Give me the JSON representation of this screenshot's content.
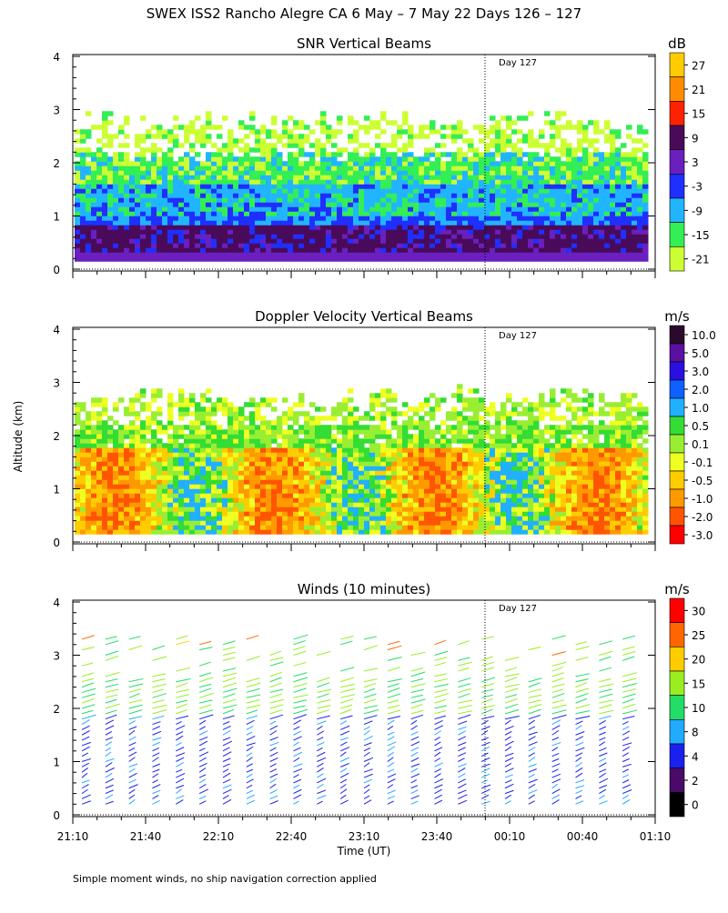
{
  "title": "SWEX ISS2 Rancho Alegre CA   6 May –  7 May 22 Days 126 – 127",
  "footer": "Simple moment winds, no ship navigation correction applied",
  "day_marker": "Day 127",
  "chart_data": [
    {
      "type": "heatmap",
      "title": "SNR Vertical Beams",
      "ylabel": "",
      "ylim": [
        0,
        4
      ],
      "yticks": [
        "0",
        "1",
        "2",
        "3",
        "4"
      ],
      "xlim": [
        "21:10",
        "01:10"
      ],
      "grid": false,
      "colorbar": {
        "unit": "dB",
        "labels": [
          "27",
          "21",
          "15",
          "9",
          "3",
          "-3",
          "-9",
          "-15",
          "-21"
        ],
        "colors": [
          "#ffcc00",
          "#ff8c00",
          "#ff2200",
          "#4a0a5a",
          "#6a1fbf",
          "#1f2fff",
          "#22b5ff",
          "#33ee55",
          "#ccff33"
        ]
      },
      "layers": [
        {
          "from": 0.1,
          "to": 0.7,
          "level": "3"
        },
        {
          "from": 0.7,
          "to": 1.0,
          "level": "-3"
        },
        {
          "from": 1.0,
          "to": 1.6,
          "level": "-9"
        },
        {
          "from": 1.6,
          "to": 2.2,
          "level": "-15"
        },
        {
          "from": 2.2,
          "to": 2.85,
          "level": "-21"
        }
      ]
    },
    {
      "type": "heatmap",
      "title": "Doppler Velocity Vertical Beams",
      "ylabel": "Altitude (km)",
      "ylim": [
        0,
        4
      ],
      "yticks": [
        "0",
        "1",
        "2",
        "3",
        "4"
      ],
      "xlim": [
        "21:10",
        "01:10"
      ],
      "grid": false,
      "colorbar": {
        "unit": "m/s",
        "labels": [
          "10.0",
          "5.0",
          "3.0",
          "2.0",
          "1.0",
          "0.5",
          "0.1",
          "-0.1",
          "-0.5",
          "-1.0",
          "-2.0",
          "-3.0"
        ],
        "colors": [
          "#2a0a2a",
          "#5a10a0",
          "#2a10e0",
          "#1060ff",
          "#20b0ff",
          "#33dd33",
          "#99ee33",
          "#eeff22",
          "#ffcc00",
          "#ff9900",
          "#ff5500",
          "#ff0000"
        ]
      },
      "layers": [
        {
          "from": 0.1,
          "to": 1.7,
          "level": "-0.5"
        },
        {
          "from": 1.7,
          "to": 2.2,
          "level": "0.5"
        },
        {
          "from": 2.2,
          "to": 2.85,
          "level": "0.1"
        }
      ]
    },
    {
      "type": "scatter",
      "title": "Winds (10 minutes)",
      "xlabel": "Time (UT)",
      "ylabel": "",
      "ylim": [
        0,
        4
      ],
      "yticks": [
        "0",
        "1",
        "2",
        "3",
        "4"
      ],
      "xticks": [
        "21:10",
        "21:40",
        "22:10",
        "22:40",
        "23:10",
        "23:40",
        "00:10",
        "00:40",
        "01:10"
      ],
      "grid": false,
      "colorbar": {
        "unit": "m/s",
        "labels": [
          "30",
          "25",
          "20",
          "15",
          "10",
          "8",
          "4",
          "2",
          "0"
        ],
        "colors": [
          "#ff0000",
          "#ff6600",
          "#ffcc00",
          "#99ee22",
          "#22dd66",
          "#22aaff",
          "#1a20ee",
          "#4a0a6a",
          "#000000"
        ]
      },
      "profiles": 24
    }
  ]
}
